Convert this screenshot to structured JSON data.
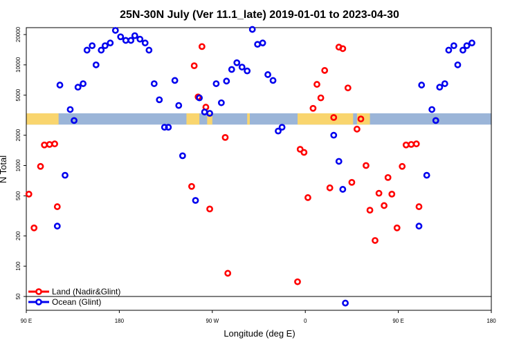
{
  "chart_data": {
    "type": "scatter",
    "title": "25N-30N July (Ver 11.1_late)   2019-01-01 to 2023-04-30",
    "xlabel": "Longitude (deg E)",
    "ylabel": "N Total",
    "y_scale": "log",
    "xlim": [
      90,
      450
    ],
    "ylim": [
      40,
      30000
    ],
    "x_ticks": [
      {
        "value": 90,
        "label": "90 E"
      },
      {
        "value": 162,
        "label": "180"
      },
      {
        "value": 234,
        "label": "90 W"
      },
      {
        "value": 306,
        "label": "0"
      },
      {
        "value": 378,
        "label": "90 E"
      },
      {
        "value": 450,
        "label": "180"
      }
    ],
    "y_ticks": [
      {
        "value": 50,
        "label": "50"
      },
      {
        "value": 100,
        "label": "100"
      },
      {
        "value": 200,
        "label": "200"
      },
      {
        "value": 500,
        "label": "500"
      },
      {
        "value": 1000,
        "label": "1000"
      },
      {
        "value": 2000,
        "label": "2000"
      },
      {
        "value": 5000,
        "label": "5000"
      },
      {
        "value": 10000,
        "label": "10000"
      },
      {
        "value": 20000,
        "label": "20000"
      }
    ],
    "land_sea_band": {
      "y_range": [
        2550,
        3300
      ],
      "land_color": "#f9d56e",
      "ocean_color": "#9bb5d8",
      "land_segments": [
        [
          90,
          115
        ],
        [
          214,
          224
        ],
        [
          230,
          234
        ],
        [
          261,
          263
        ],
        [
          300,
          343
        ],
        [
          346,
          356
        ]
      ]
    },
    "series": [
      {
        "name": "Land (Nadir&Glint)",
        "color": "#ff0000",
        "points": [
          [
            92,
            520
          ],
          [
            96,
            240
          ],
          [
            101,
            980
          ],
          [
            104,
            1600
          ],
          [
            108,
            1620
          ],
          [
            112,
            1640
          ],
          [
            114,
            390
          ],
          [
            218,
            620
          ],
          [
            220,
            9800
          ],
          [
            223,
            4800
          ],
          [
            226,
            15200
          ],
          [
            229,
            3800
          ],
          [
            232,
            370
          ],
          [
            244,
            1900
          ],
          [
            246,
            85
          ],
          [
            300,
            70
          ],
          [
            302,
            1450
          ],
          [
            305,
            1350
          ],
          [
            308,
            480
          ],
          [
            312,
            3700
          ],
          [
            315,
            6400
          ],
          [
            318,
            4700
          ],
          [
            321,
            8800
          ],
          [
            325,
            600
          ],
          [
            328,
            3000
          ],
          [
            332,
            15000
          ],
          [
            335,
            14500
          ],
          [
            339,
            5900
          ],
          [
            342,
            680
          ],
          [
            346,
            2300
          ],
          [
            349,
            2900
          ],
          [
            353,
            1000
          ],
          [
            356,
            360
          ],
          [
            360,
            180
          ],
          [
            363,
            530
          ],
          [
            367,
            400
          ],
          [
            370,
            760
          ],
          [
            373,
            520
          ],
          [
            377,
            240
          ],
          [
            381,
            980
          ],
          [
            384,
            1600
          ],
          [
            388,
            1620
          ],
          [
            392,
            1640
          ],
          [
            394,
            390
          ]
        ]
      },
      {
        "name": "Ocean (Glint)",
        "color": "#0000ee",
        "points": [
          [
            114,
            250
          ],
          [
            116,
            6300
          ],
          [
            120,
            800
          ],
          [
            124,
            3600
          ],
          [
            127,
            2800
          ],
          [
            130,
            6000
          ],
          [
            134,
            6500
          ],
          [
            137,
            14000
          ],
          [
            141,
            15500
          ],
          [
            144,
            10000
          ],
          [
            148,
            14000
          ],
          [
            151,
            15500
          ],
          [
            155,
            16500
          ],
          [
            159,
            22000
          ],
          [
            163,
            19000
          ],
          [
            167,
            17500
          ],
          [
            171,
            17500
          ],
          [
            174,
            19500
          ],
          [
            178,
            18000
          ],
          [
            182,
            16500
          ],
          [
            185,
            14000
          ],
          [
            189,
            6500
          ],
          [
            193,
            4500
          ],
          [
            197,
            2400
          ],
          [
            200,
            2400
          ],
          [
            205,
            7000
          ],
          [
            208,
            3950
          ],
          [
            211,
            1250
          ],
          [
            221,
            450
          ],
          [
            224,
            4700
          ],
          [
            228,
            3400
          ],
          [
            232,
            3300
          ],
          [
            237,
            6500
          ],
          [
            241,
            4200
          ],
          [
            245,
            6900
          ],
          [
            249,
            9000
          ],
          [
            253,
            10500
          ],
          [
            257,
            9500
          ],
          [
            261,
            8700
          ],
          [
            265,
            22500
          ],
          [
            269,
            16000
          ],
          [
            273,
            16500
          ],
          [
            277,
            8000
          ],
          [
            281,
            7000
          ],
          [
            285,
            2200
          ],
          [
            288,
            2400
          ],
          [
            328,
            2000
          ],
          [
            332,
            1100
          ],
          [
            335,
            580
          ],
          [
            337,
            43
          ],
          [
            394,
            250
          ],
          [
            396,
            6300
          ],
          [
            400,
            800
          ],
          [
            404,
            3600
          ],
          [
            407,
            2800
          ],
          [
            410,
            6000
          ],
          [
            414,
            6500
          ],
          [
            417,
            14000
          ],
          [
            421,
            15500
          ],
          [
            424,
            10000
          ],
          [
            428,
            14000
          ],
          [
            431,
            15500
          ],
          [
            435,
            16500
          ]
        ]
      }
    ],
    "legend": {
      "position": "bottom-left",
      "entries": [
        {
          "label": "Land (Nadir&Glint)",
          "color": "#ff0000"
        },
        {
          "label": "Ocean (Glint)",
          "color": "#0000ee"
        }
      ]
    }
  }
}
